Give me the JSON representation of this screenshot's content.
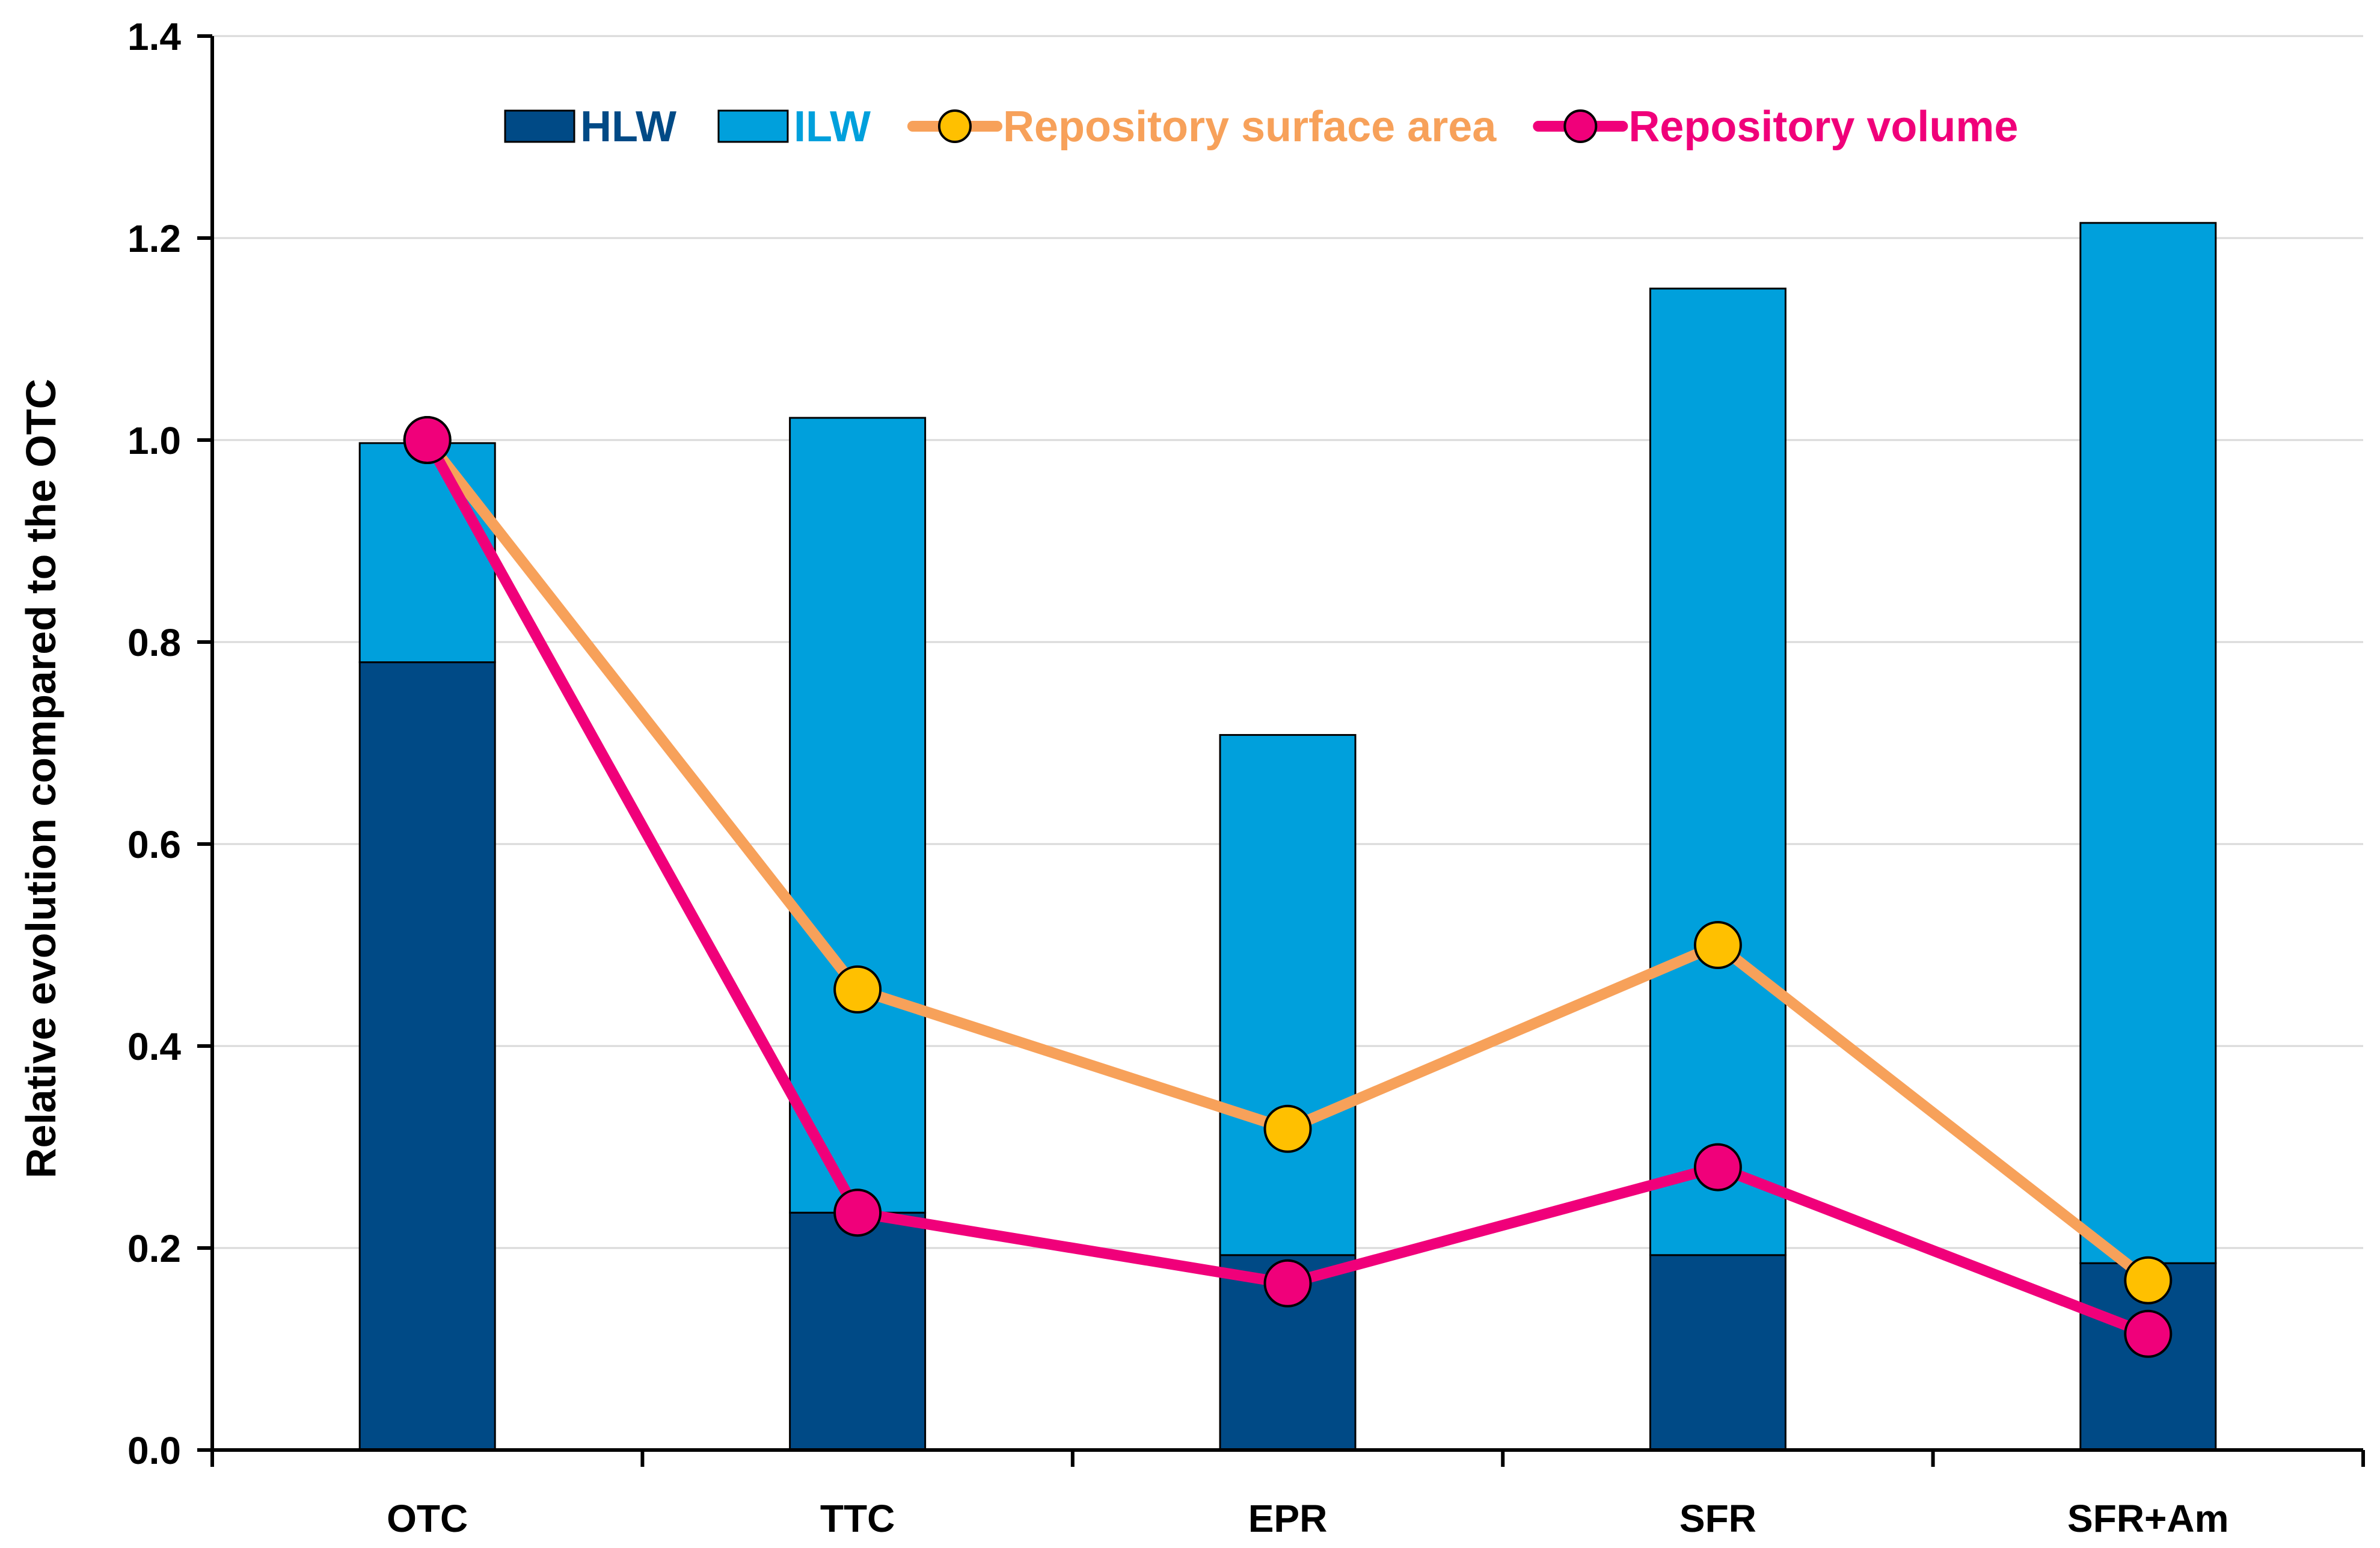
{
  "chart_data": {
    "type": "bar",
    "stacked": true,
    "title": "",
    "xlabel": "",
    "ylabel": "Relative evolution compared to the OTC",
    "ylim": [
      0,
      1.4
    ],
    "yticks": [
      0.0,
      0.2,
      0.4,
      0.6,
      0.8,
      1.0,
      1.2,
      1.4
    ],
    "ytick_labels": [
      "0.0",
      "0.2",
      "0.4",
      "0.6",
      "0.8",
      "1.0",
      "1.2",
      "1.4"
    ],
    "grid": "horizontal",
    "legend_position": "top-center",
    "categories": [
      "OTC",
      "TTC",
      "EPR",
      "SFR",
      "SFR+Am"
    ],
    "series": [
      {
        "name": "HLW",
        "kind": "bar",
        "color": "#004a86",
        "values": [
          0.78,
          0.235,
          0.193,
          0.193,
          0.185
        ]
      },
      {
        "name": "ILW",
        "kind": "bar",
        "color": "#00a0dc",
        "values": [
          0.217,
          0.787,
          0.515,
          0.957,
          1.03
        ]
      },
      {
        "name": "Repository surface area",
        "kind": "line",
        "color": "#f7a15a",
        "marker_color": "#ffc000",
        "values": [
          1.0,
          0.456,
          0.318,
          0.5,
          0.168
        ]
      },
      {
        "name": "Repository volume",
        "kind": "line",
        "color": "#f0007a",
        "marker_color": "#f0007a",
        "values": [
          1.0,
          0.235,
          0.165,
          0.28,
          0.115
        ]
      }
    ]
  }
}
